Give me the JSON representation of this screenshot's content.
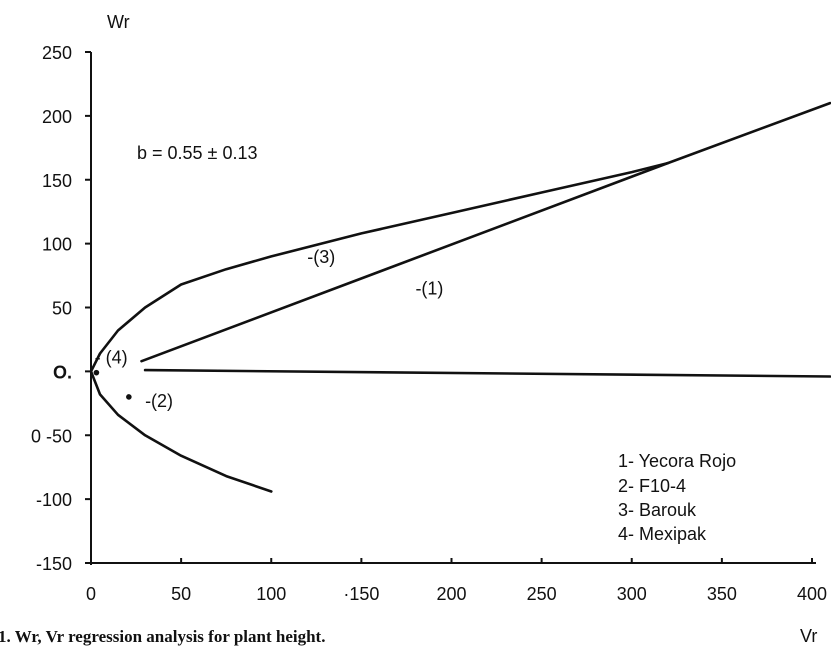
{
  "chart_data": {
    "type": "line",
    "title": "",
    "caption": "1. Wr, Vr regression analysis for plant height.",
    "xlabel": "Vr",
    "ylabel": "Wr",
    "xlim": [
      0,
      400
    ],
    "ylim": [
      -150,
      250
    ],
    "x_ticks": [
      {
        "value": 0,
        "label": "0"
      },
      {
        "value": 50,
        "label": "50"
      },
      {
        "value": 100,
        "label": "100"
      },
      {
        "value": 150,
        "label": "·150"
      },
      {
        "value": 200,
        "label": "200"
      },
      {
        "value": 250,
        "label": "250"
      },
      {
        "value": 300,
        "label": "300"
      },
      {
        "value": 350,
        "label": "350"
      },
      {
        "value": 400,
        "label": "400"
      }
    ],
    "y_ticks": [
      {
        "value": 250,
        "label": "250"
      },
      {
        "value": 200,
        "label": "200"
      },
      {
        "value": 150,
        "label": "150"
      },
      {
        "value": 100,
        "label": "100"
      },
      {
        "value": 50,
        "label": "50"
      },
      {
        "value": 0,
        "label": "O."
      },
      {
        "value": -50,
        "label": "0 -50"
      },
      {
        "value": -100,
        "label": "-100"
      },
      {
        "value": -150,
        "label": "-150"
      }
    ],
    "grid": false,
    "annotation": "b = 0.55 ± 0.13",
    "series": [
      {
        "label": "-(1)",
        "color": "#111111",
        "points": [
          [
            28,
            8
          ],
          [
            320,
            163
          ],
          [
            410,
            210
          ]
        ]
      },
      {
        "label": "-(3)",
        "color": "#111111",
        "points": [
          [
            0,
            0
          ],
          [
            5,
            14
          ],
          [
            15,
            32
          ],
          [
            30,
            50
          ],
          [
            50,
            68
          ],
          [
            75,
            80
          ],
          [
            100,
            90
          ],
          [
            150,
            108
          ],
          [
            200,
            124
          ],
          [
            250,
            140
          ],
          [
            300,
            156
          ],
          [
            320,
            163
          ]
        ]
      },
      {
        "label": "-(2)",
        "color": "#111111",
        "points": [
          [
            0,
            0
          ],
          [
            5,
            -18
          ],
          [
            15,
            -34
          ],
          [
            30,
            -50
          ],
          [
            50,
            -66
          ],
          [
            75,
            -82
          ],
          [
            100,
            -94
          ]
        ]
      },
      {
        "label": "- (4)",
        "color": "#111111",
        "points": [
          [
            30,
            1
          ],
          [
            410,
            -4
          ]
        ]
      }
    ],
    "series_label_positions": [
      {
        "text": "-(1)",
        "at": [
          180,
          60
        ]
      },
      {
        "text": "-(3)",
        "at": [
          120,
          85
        ]
      },
      {
        "text": "-(2)",
        "at": [
          30,
          -28
        ]
      },
      {
        "text": "- (4)",
        "at": [
          2,
          6
        ]
      }
    ],
    "points": [
      [
        21,
        -20
      ],
      [
        3,
        -1
      ]
    ],
    "legend": {
      "placement": "bottom-right",
      "items": [
        "1- Yecora Rojo",
        "2- F10-4",
        "3- Barouk",
        "4- Mexipak"
      ]
    }
  }
}
